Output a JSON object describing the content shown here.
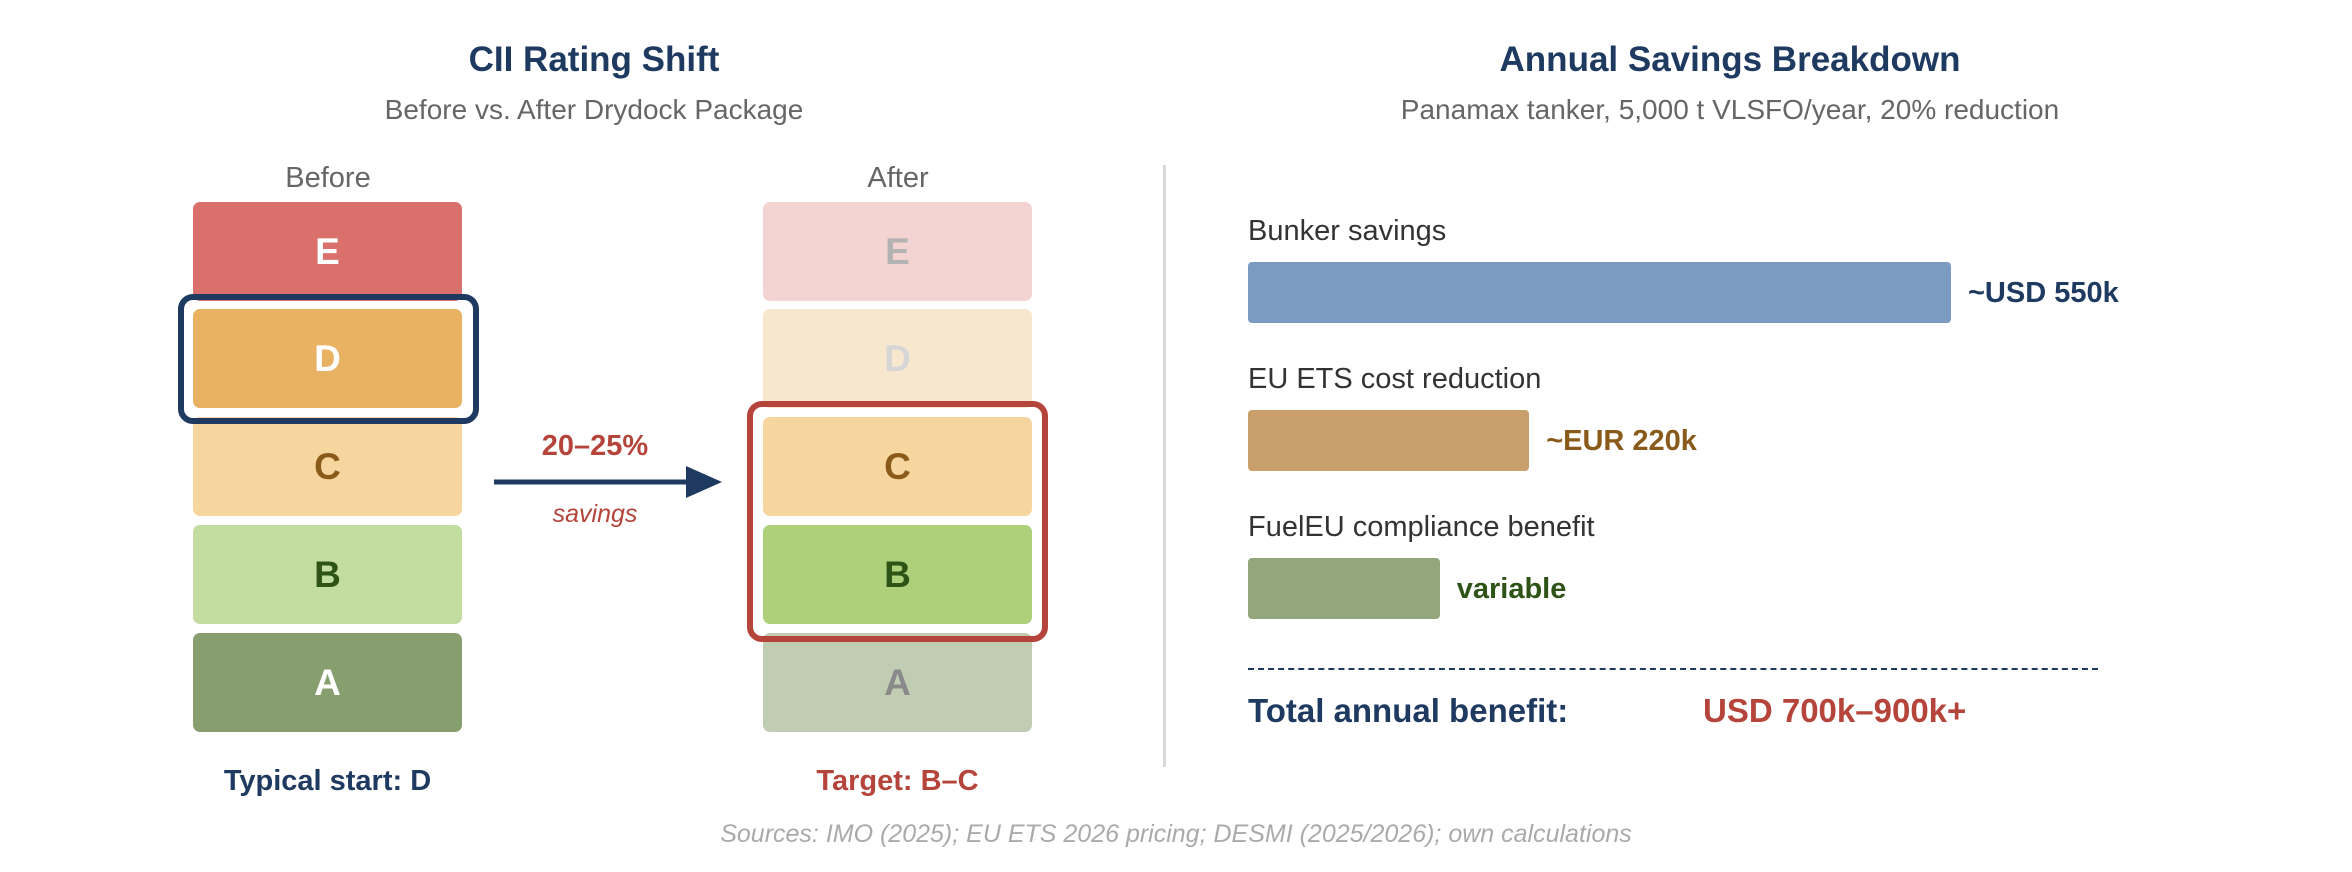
{
  "left": {
    "title": "CII Rating Shift",
    "subtitle": "Before vs. After Drydock Package",
    "before": {
      "label": "Before",
      "ratings": [
        {
          "grade": "E",
          "fill": "#d9706b",
          "text": "#ffffff"
        },
        {
          "grade": "D",
          "fill": "#e9b162",
          "text": "#ffffff"
        },
        {
          "grade": "C",
          "fill": "#f6d59e",
          "text": "#8a5a1a"
        },
        {
          "grade": "B",
          "fill": "#c3dca0",
          "text": "#2e5316"
        },
        {
          "grade": "A",
          "fill": "#879e6e",
          "text": "#ffffff"
        }
      ],
      "highlight": "D",
      "footer": "Typical start: D"
    },
    "after": {
      "label": "After",
      "ratings": [
        {
          "grade": "E",
          "fill": "#f4d4d2",
          "text": "#b3b3b3"
        },
        {
          "grade": "D",
          "fill": "#f8e7cf",
          "text": "#d6d6d6"
        },
        {
          "grade": "C",
          "fill": "#f6d59e",
          "text": "#8a5a1a"
        },
        {
          "grade": "B",
          "fill": "#aed07b",
          "text": "#2e5316"
        },
        {
          "grade": "A",
          "fill": "#c1cdb3",
          "text": "#8a8a8a"
        }
      ],
      "highlight": [
        "C",
        "B"
      ],
      "footer": "Target: B–C"
    },
    "arrow": {
      "value": "20–25%",
      "caption": "savings"
    }
  },
  "right": {
    "title": "Annual Savings Breakdown",
    "subtitle": "Panamax tanker, 5,000 t VLSFO/year, 20% reduction"
  },
  "chart_data": {
    "type": "bar",
    "orientation": "horizontal",
    "categories": [
      "Bunker savings",
      "EU ETS cost reduction",
      "FuelEU compliance benefit"
    ],
    "values": [
      550,
      220,
      150
    ],
    "value_labels": [
      "~USD 550k",
      "~EUR 220k",
      "variable"
    ],
    "units": "thousands (approx.)",
    "colors": [
      "#7b9bc1",
      "#c9a06c",
      "#92a77b"
    ],
    "label_colors": [
      "#1f3a60",
      "#8a5a1a",
      "#2e5316"
    ],
    "total_label": "Total annual benefit:",
    "total_value": "USD 700k–900k+",
    "title": "Annual Savings Breakdown"
  },
  "colors": {
    "navy": "#1f3a60",
    "red": "#b5443b"
  },
  "source": "Sources: IMO (2025); EU ETS 2026 pricing; DESMI (2025/2026); own calculations"
}
